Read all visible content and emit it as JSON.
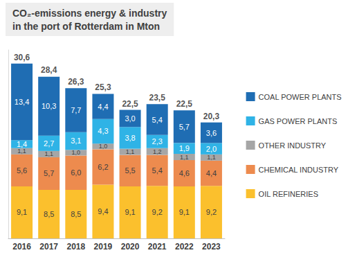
{
  "chart_data": {
    "type": "bar",
    "title": "CO₂-emissions energy & industry\nin the port of Rotterdam in Mton",
    "categories": [
      "2016",
      "2017",
      "2018",
      "2019",
      "2020",
      "2021",
      "2022",
      "2023"
    ],
    "stacked": true,
    "data_labels": true,
    "tick_labels": "x",
    "grid": false,
    "legend": "right",
    "ylim": [
      0,
      33
    ],
    "series": [
      {
        "name": "OIL REFINERIES",
        "color": "#fbc02d",
        "values": [
          9.1,
          8.5,
          8.5,
          9.4,
          9.1,
          9.2,
          9.1,
          9.2
        ],
        "value_labels": [
          "9,1",
          "8,5",
          "8,5",
          "9,4",
          "9,1",
          "9,2",
          "9,1",
          "9,2"
        ]
      },
      {
        "name": "CHEMICAL INDUSTRY",
        "color": "#ed8b4e",
        "values": [
          5.6,
          5.7,
          6.0,
          6.2,
          5.5,
          5.4,
          4.6,
          4.4
        ],
        "value_labels": [
          "5,6",
          "5,7",
          "6,0",
          "6,2",
          "5,5",
          "5,4",
          "4,6",
          "4,4"
        ]
      },
      {
        "name": "OTHER INDUSTRY",
        "color": "#a6a6a6",
        "values": [
          1.1,
          1.1,
          1.0,
          1.0,
          1.1,
          1.2,
          1.1,
          1.1
        ],
        "value_labels": [
          "1,1",
          "1,1",
          "1,0",
          "1,0",
          "1,1",
          "1,2",
          "1,1",
          "1,1"
        ]
      },
      {
        "name": "GAS POWER PLANTS",
        "color": "#2fb3e6",
        "values": [
          1.4,
          2.7,
          3.1,
          4.3,
          3.8,
          2.3,
          1.9,
          2.0
        ],
        "value_labels": [
          "1,4",
          "2,7",
          "3,1",
          "4,3",
          "3,8",
          "2,3",
          "1,9",
          "2,0"
        ]
      },
      {
        "name": "COAL POWER PLANTS",
        "color": "#1f6db3",
        "values": [
          13.4,
          10.3,
          7.7,
          4.4,
          3.0,
          5.4,
          5.7,
          3.6
        ],
        "value_labels": [
          "13,4",
          "10,3",
          "7,7",
          "4,4",
          "3,0",
          "5,4",
          "5,7",
          "3,6"
        ]
      }
    ],
    "totals": {
      "values": [
        30.6,
        28.4,
        26.3,
        25.3,
        22.5,
        23.5,
        22.5,
        20.3
      ],
      "value_labels": [
        "30,6",
        "28,4",
        "26,3",
        "25,3",
        "22,5",
        "23,5",
        "22,5",
        "20,3"
      ]
    }
  }
}
